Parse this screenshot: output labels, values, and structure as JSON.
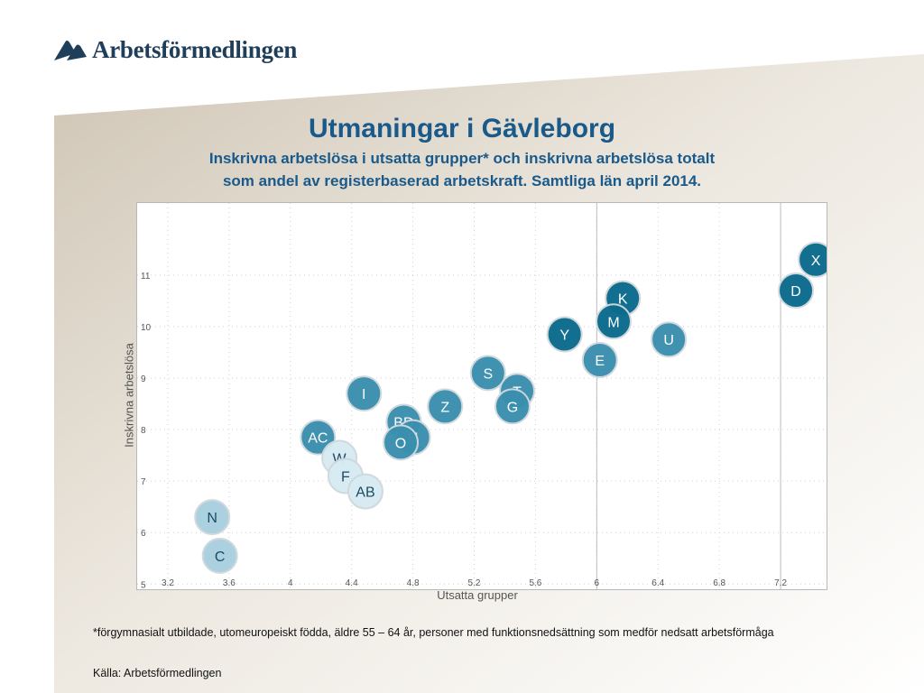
{
  "logo": {
    "text": "Arbetsförmedlingen"
  },
  "title": "Utmaningar i Gävleborg",
  "subtitle_line1": "Inskrivna arbetslösa i utsatta grupper* och inskrivna arbetslösa totalt",
  "subtitle_line2": "som andel av registerbaserad arbetskraft. Samtliga län april 2014.",
  "footnote": "*förgymnasialt utbildade, utomeuropeiskt födda, äldre 55 – 64 år, personer med funktionsnedsättning som medför nedsatt arbetsförmåga",
  "source": "Källa: Arbetsförmedlingen",
  "colors": {
    "title": "#1a5a8a",
    "dark": "#0b6b8c",
    "mid": "#3a8fae",
    "light": "#a9d0e0",
    "pale": "#d7ebf2"
  },
  "chart_data": {
    "type": "scatter",
    "xlabel": "Utsatta  grupper",
    "ylabel": "Inskrivna  arbetslösa",
    "xlim": [
      3.0,
      7.5
    ],
    "ylim": [
      4.9,
      12.4
    ],
    "xticks": [
      "3.2",
      "3.6",
      "4",
      "4.4",
      "4.8",
      "5.2",
      "5.6",
      "6",
      "6.4",
      "6.8",
      "7.2"
    ],
    "yticks": [
      "5",
      "6",
      "7",
      "8",
      "9",
      "10",
      "11"
    ],
    "reference_lines_x": [
      6.0,
      7.2
    ],
    "grid": true,
    "points": [
      {
        "label": "X",
        "x": 7.43,
        "y": 11.3,
        "shade": "dark"
      },
      {
        "label": "D",
        "x": 7.3,
        "y": 10.7,
        "shade": "dark"
      },
      {
        "label": "K",
        "x": 6.17,
        "y": 10.55,
        "shade": "dark"
      },
      {
        "label": "M",
        "x": 6.11,
        "y": 10.1,
        "shade": "dark"
      },
      {
        "label": "Y",
        "x": 5.79,
        "y": 9.85,
        "shade": "dark"
      },
      {
        "label": "U",
        "x": 6.47,
        "y": 9.75,
        "shade": "mid"
      },
      {
        "label": "E",
        "x": 6.02,
        "y": 9.35,
        "shade": "mid"
      },
      {
        "label": "S",
        "x": 5.29,
        "y": 9.1,
        "shade": "mid"
      },
      {
        "label": "T",
        "x": 5.48,
        "y": 8.75,
        "shade": "mid"
      },
      {
        "label": "G",
        "x": 5.45,
        "y": 8.45,
        "shade": "mid"
      },
      {
        "label": "Z",
        "x": 5.01,
        "y": 8.45,
        "shade": "mid"
      },
      {
        "label": "I",
        "x": 4.48,
        "y": 8.7,
        "shade": "mid"
      },
      {
        "label": "BD",
        "x": 4.74,
        "y": 8.15,
        "shade": "mid"
      },
      {
        "label": "H",
        "x": 4.8,
        "y": 7.85,
        "shade": "mid"
      },
      {
        "label": "O",
        "x": 4.72,
        "y": 7.75,
        "shade": "mid"
      },
      {
        "label": "AC",
        "x": 4.18,
        "y": 7.85,
        "shade": "mid"
      },
      {
        "label": "W",
        "x": 4.32,
        "y": 7.45,
        "shade": "pale"
      },
      {
        "label": "F",
        "x": 4.36,
        "y": 7.1,
        "shade": "pale"
      },
      {
        "label": "AB",
        "x": 4.49,
        "y": 6.8,
        "shade": "pale"
      },
      {
        "label": "N",
        "x": 3.49,
        "y": 6.3,
        "shade": "light"
      },
      {
        "label": "C",
        "x": 3.54,
        "y": 5.55,
        "shade": "light"
      }
    ]
  }
}
